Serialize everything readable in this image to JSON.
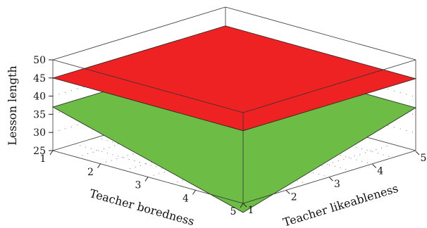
{
  "chart_data": {
    "type": "surface",
    "title": "",
    "xlabel": "Teacher boredness",
    "ylabel": "Teacher likeableness",
    "zlabel": "Lesson length",
    "x_ticks": [
      "1",
      "2",
      "3",
      "4",
      "5"
    ],
    "y_ticks": [
      "1",
      "2",
      "3",
      "4",
      "5"
    ],
    "z_ticks": [
      "25",
      "30",
      "35",
      "40",
      "45",
      "50"
    ],
    "xlim": [
      1,
      5
    ],
    "ylim": [
      1,
      5
    ],
    "zlim": [
      25,
      50
    ],
    "grid": "dotted",
    "series": [
      {
        "color": "#6cbc45",
        "corners": [
          {
            "x": 1,
            "y": 5,
            "z": 37
          },
          {
            "x": 1,
            "y": 1,
            "z": 37
          },
          {
            "x": 5,
            "y": 1,
            "z": 22.5
          },
          {
            "x": 5,
            "y": 5,
            "z": 37
          }
        ]
      },
      {
        "color": "#ee2222",
        "corners": [
          {
            "x": 1,
            "y": 5,
            "z": 45
          },
          {
            "x": 1,
            "y": 1,
            "z": 45
          },
          {
            "x": 5,
            "y": 1,
            "z": 45
          },
          {
            "x": 5,
            "y": 5,
            "z": 45
          }
        ]
      }
    ]
  }
}
